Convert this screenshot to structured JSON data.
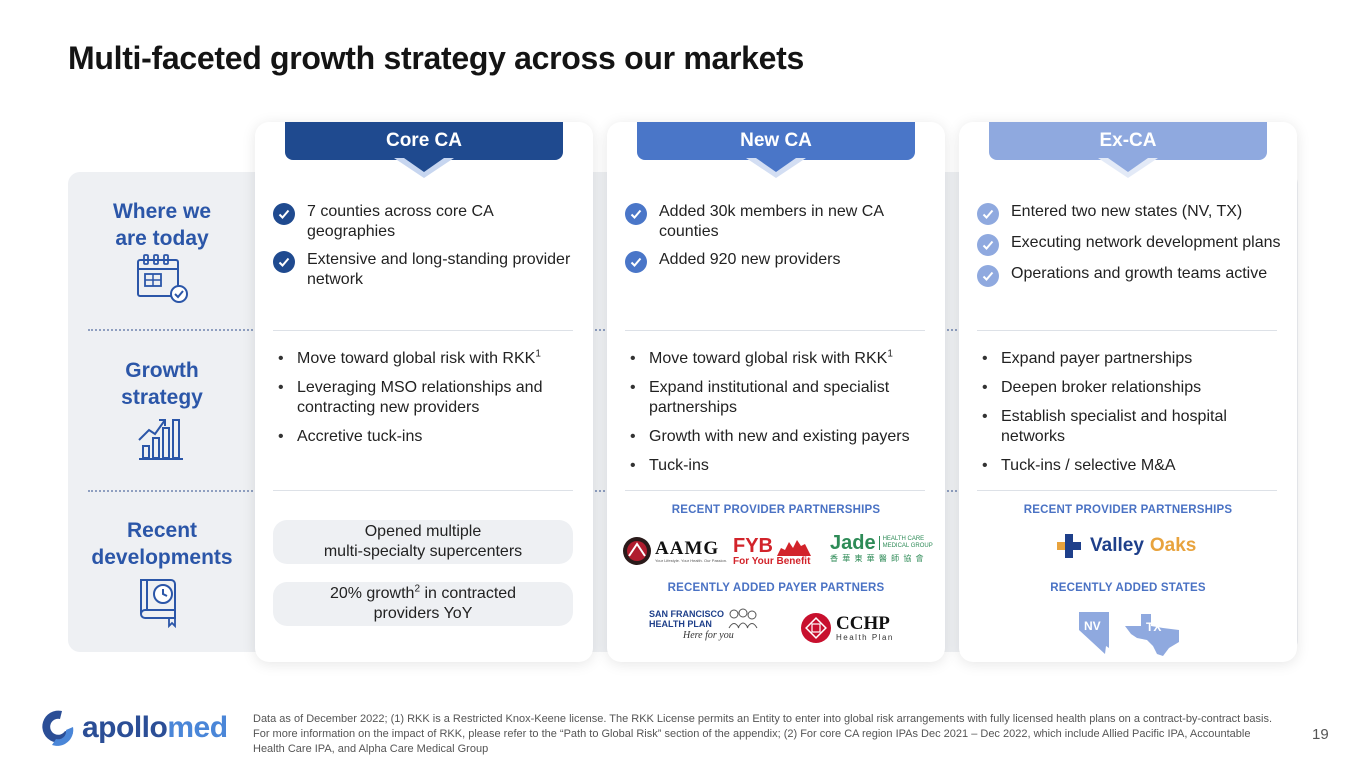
{
  "title": "Multi-faceted growth strategy across our markets",
  "rows": [
    {
      "label_line1": "Where we",
      "label_line2": "are today",
      "icon": "calendar-check-icon"
    },
    {
      "label_line1": "Growth",
      "label_line2": "strategy",
      "icon": "bar-chart-growth-icon"
    },
    {
      "label_line1": "Recent",
      "label_line2": "developments",
      "icon": "book-clock-icon"
    }
  ],
  "columns": [
    {
      "header": "Core CA",
      "color": "#1f4a8f",
      "checks": [
        "7 counties across core CA geographies",
        "Extensive and long-standing provider network"
      ],
      "bullets": [
        {
          "text": "Move toward global risk with RKK",
          "sup": "1"
        },
        {
          "text": "Leveraging MSO relationships and contracting new providers",
          "sup": ""
        },
        {
          "text": "Accretive tuck-ins",
          "sup": ""
        }
      ],
      "pills": [
        {
          "line1": "Opened multiple",
          "line2": "multi-specialty supercenters"
        },
        {
          "pre": "20% growth",
          "sup": "2",
          "post": " in contracted",
          "line2": "providers YoY"
        }
      ]
    },
    {
      "header": "New CA",
      "color": "#4a76c8",
      "checks": [
        "Added 30k members in new CA counties",
        "Added 920 new providers"
      ],
      "bullets": [
        {
          "text": "Move toward global risk with RKK",
          "sup": "1"
        },
        {
          "text": "Expand institutional and specialist partnerships",
          "sup": ""
        },
        {
          "text": "Growth with new and existing payers",
          "sup": ""
        },
        {
          "text": "Tuck-ins",
          "sup": ""
        }
      ],
      "partnerships_label": "RECENT PROVIDER PARTNERSHIPS",
      "payers_label": "RECENTLY ADDED PAYER PARTNERS",
      "logos": {
        "aamg": "AAMG",
        "aamg_tag": "Your Lifestyle. Your Health. Our Passion.",
        "fyb": "FYB",
        "fyb_tag": "For Your Benefit",
        "jade": "Jade",
        "jade_tag1": "HEALTH CARE",
        "jade_tag2": "MEDICAL GROUP",
        "jade_cn": "香 華 東 華 醫 師 協 會",
        "sfhp1": "SAN FRANCISCO",
        "sfhp2": "HEALTH PLAN",
        "sfhp_tag": "Here for you",
        "cchp": "CCHP",
        "cchp_tag": "Health Plan"
      }
    },
    {
      "header": "Ex-CA",
      "color": "#8fa9df",
      "checks": [
        "Entered two new states (NV, TX)",
        "Executing network development plans",
        "Operations and growth teams active"
      ],
      "bullets": [
        {
          "text": "Expand payer partnerships",
          "sup": ""
        },
        {
          "text": "Deepen broker relationships",
          "sup": ""
        },
        {
          "text": "Establish specialist and hospital networks",
          "sup": ""
        },
        {
          "text": "Tuck-ins / selective M&A",
          "sup": ""
        }
      ],
      "partnerships_label": "RECENT PROVIDER PARTNERSHIPS",
      "states_label": "RECENTLY ADDED STATES",
      "logos": {
        "valley": "Valley",
        "oaks": "Oaks",
        "nv": "NV",
        "tx": "TX"
      }
    }
  ],
  "footer": {
    "note": "Data as of December 2022; (1) RKK is a Restricted Knox-Keene license. The RKK License permits an Entity to enter into global risk arrangements with fully licensed health plans on a contract-by-contract basis. For more information on the impact of RKK, please refer to the “Path to Global Risk” section of the appendix; (2) For core CA region IPAs Dec 2021 – Dec 2022, which include Allied Pacific IPA, Accountable Health Care IPA, and Alpha Care Medical Group",
    "page": "19",
    "brand_a": "apollo",
    "brand_b": "med"
  }
}
